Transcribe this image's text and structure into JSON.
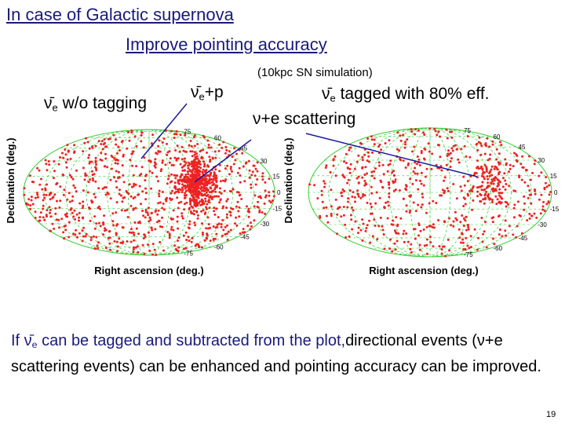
{
  "header": {
    "title_lines": [
      "In case of Galactic supernova",
      "Improve pointing accuracy"
    ]
  },
  "note": "(10kpc SN simulation)",
  "labels": {
    "left_tag": {
      "symbol": "ν̄",
      "sub": "e",
      "text": " w/o tagging"
    },
    "left_arrow": {
      "symbol": "ν̄",
      "sub": "e",
      "text": "+p"
    },
    "right_tag": {
      "symbol": "ν̄",
      "sub": "e",
      "text": " tagged with 80% eff."
    },
    "right_arrow": {
      "text": "ν+e scattering"
    }
  },
  "plots": [
    {
      "y_label": "Declination (deg.)",
      "x_label": "Right ascension (deg.)",
      "yticks": [
        75,
        60,
        45,
        30,
        15,
        0,
        -15,
        -30,
        -45,
        -60,
        -75
      ]
    },
    {
      "y_label": "Declination (deg.)",
      "x_label": "Right ascension (deg.)",
      "yticks": [
        75,
        60,
        45,
        30,
        15,
        0,
        -15,
        -30,
        -45,
        -60,
        -75
      ]
    }
  ],
  "body": {
    "start": "If ",
    "symbol": "ν̄",
    "sub": "e",
    "rest": " can be tagged and subtracted from the plot,",
    "rest2": "directional events (ν+e scattering events) can be enhanced and pointing accuracy can be improved."
  },
  "page_number": "19"
}
